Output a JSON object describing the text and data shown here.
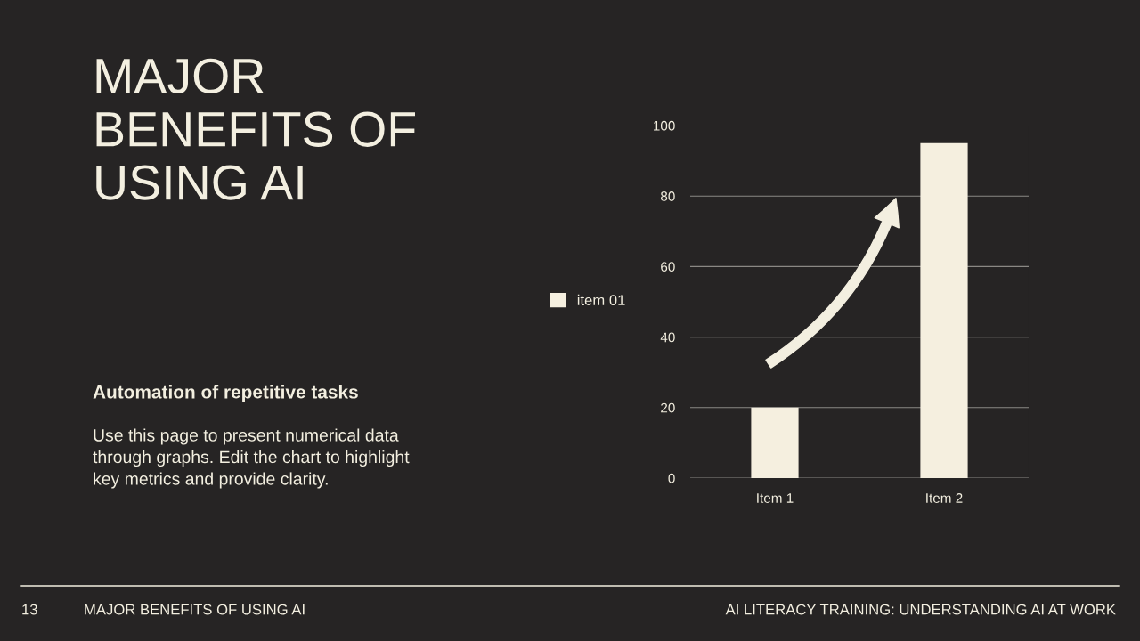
{
  "chart_data": {
    "type": "bar",
    "title": "MAJOR BENEFITS OF USING AI",
    "subtitle": "Automation of repetitive tasks",
    "categories": [
      "Item 1",
      "Item 2"
    ],
    "series": [
      {
        "name": "item 01",
        "color": "#f5efdf",
        "values": [
          20,
          95
        ]
      }
    ],
    "ylim": [
      0,
      100
    ],
    "yticks": [
      0,
      20,
      40,
      60,
      80,
      100
    ],
    "grid": "y",
    "legend": "left",
    "annotations": [
      "Use this page to present numerical data through graphs. Edit the chart to highlight key metrics and provide clarity.",
      "13",
      "MAJOR BENEFITS OF USING AI",
      "AI LITERACY TRAINING: UNDERSTANDING AI AT WORK"
    ]
  }
}
